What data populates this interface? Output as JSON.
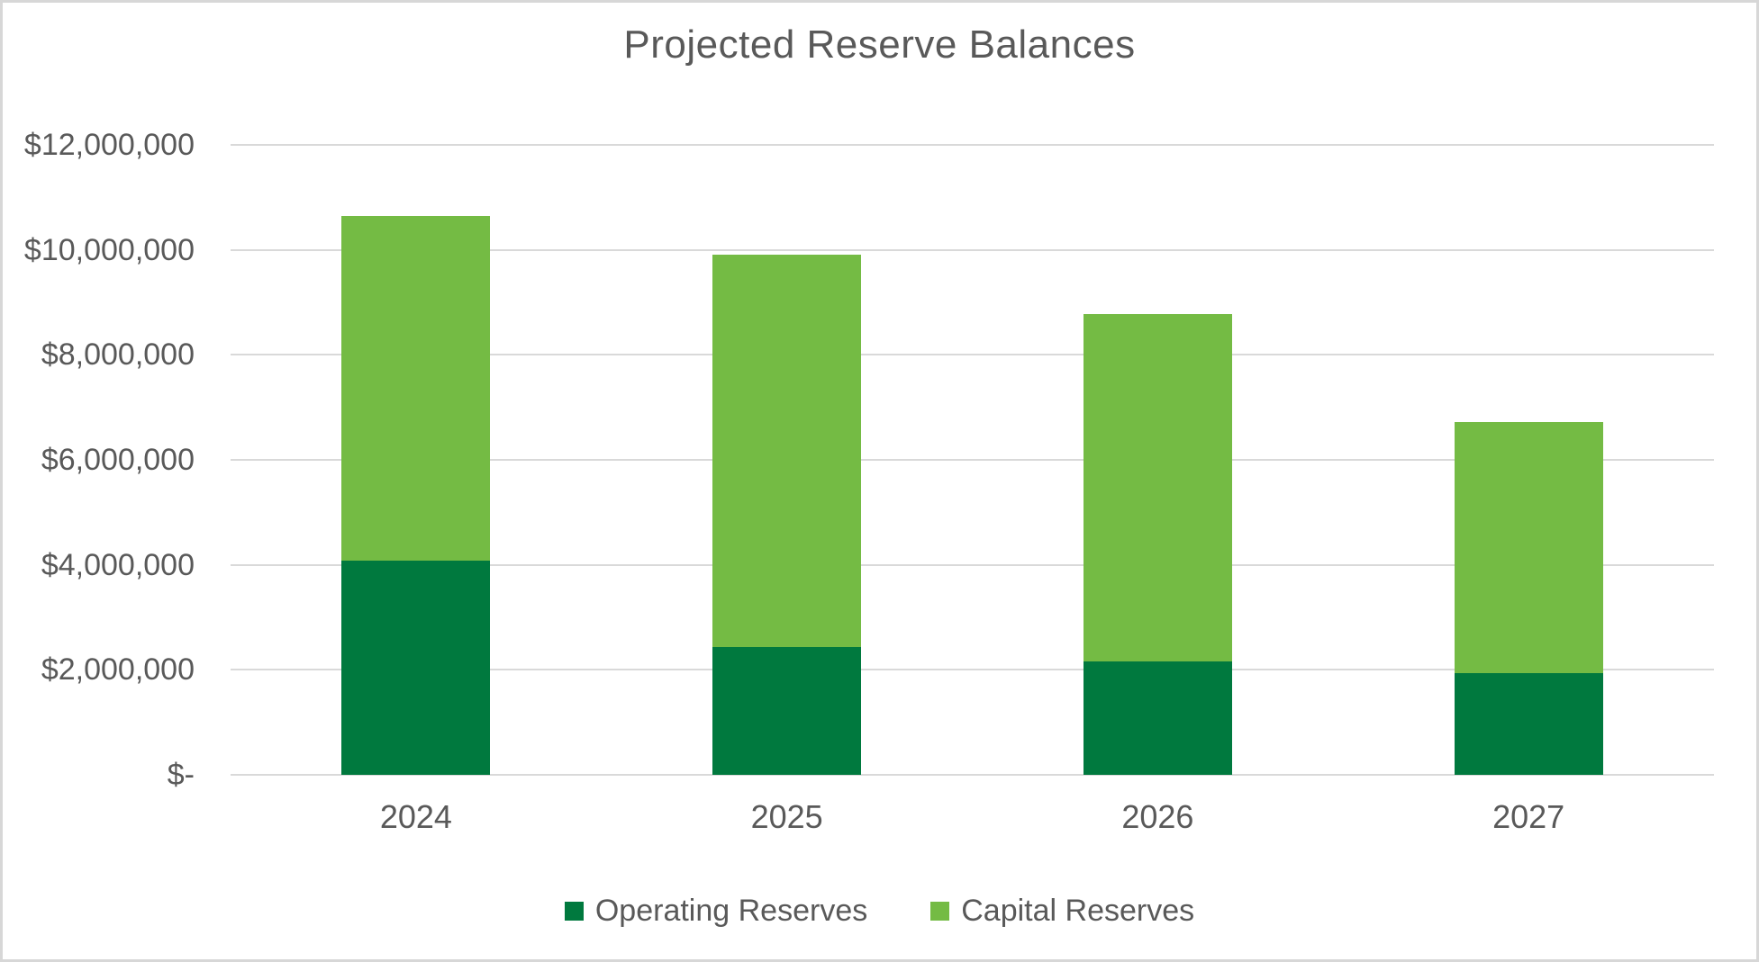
{
  "chart_data": {
    "type": "bar",
    "stacked": true,
    "title": "Projected Reserve Balances",
    "categories": [
      "2024",
      "2025",
      "2026",
      "2027"
    ],
    "series": [
      {
        "name": "Operating Reserves",
        "color": "#00793E",
        "values": [
          4075000,
          2435000,
          2160000,
          1940000
        ]
      },
      {
        "name": "Capital Reserves",
        "color": "#74BB44",
        "values": [
          6575000,
          7475000,
          6610000,
          4780000
        ]
      }
    ],
    "totals": [
      10650000,
      9910000,
      8770000,
      6720000
    ],
    "y_axis": {
      "min": 0,
      "max": 12000000,
      "step": 2000000,
      "tick_labels": [
        "$-",
        "$2,000,000",
        "$4,000,000",
        "$6,000,000",
        "$8,000,000",
        "$10,000,000",
        "$12,000,000"
      ]
    },
    "x_axis": {
      "tick_labels": [
        "2024",
        "2025",
        "2026",
        "2027"
      ]
    },
    "legend_position": "bottom",
    "grid": "horizontal",
    "colors": {
      "text": "#595959",
      "gridline": "#D9D9D9",
      "canvas_border": "#D7D7D7",
      "background": "#FFFFFF"
    }
  }
}
